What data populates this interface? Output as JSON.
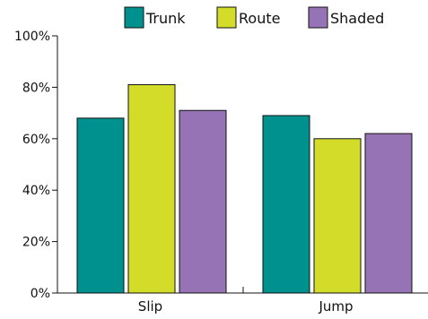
{
  "chart_data": {
    "type": "bar",
    "title": "",
    "xlabel": "",
    "ylabel": "",
    "categories": [
      "Slip",
      "Jump"
    ],
    "series": [
      {
        "name": "Trunk",
        "values": [
          68,
          69
        ],
        "color": "#00918e"
      },
      {
        "name": "Route",
        "values": [
          81,
          60
        ],
        "color": "#d3dc29"
      },
      {
        "name": "Shaded",
        "values": [
          71,
          62
        ],
        "color": "#9673b4"
      }
    ],
    "ylim": [
      0,
      100
    ],
    "yticks": [
      0,
      20,
      40,
      60,
      80,
      100
    ],
    "ytick_labels": [
      "0%",
      "20%",
      "40%",
      "60%",
      "80%",
      "100%"
    ],
    "legend_position": "top",
    "grid": false
  }
}
